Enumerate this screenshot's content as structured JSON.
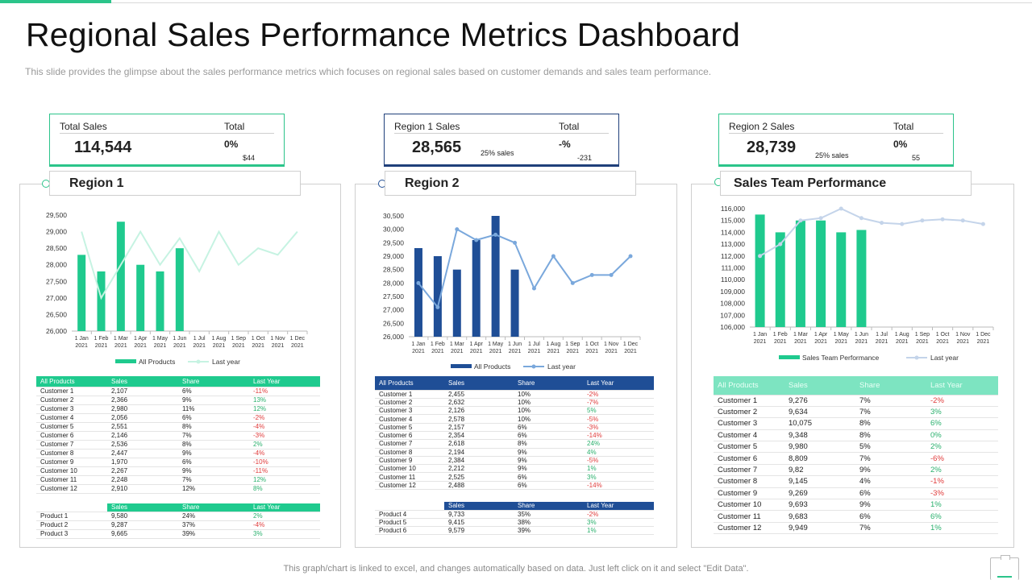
{
  "header": {
    "title": "Regional Sales Performance Metrics Dashboard",
    "subtitle": "This slide provides  the glimpse about the sales performance  metrics which focuses on regional sales based on customer demands  and sales team performance."
  },
  "footer": {
    "note": "This graph/chart is linked to excel,  and changes automatically based on data. Just left click on it and select \"Edit Data\"."
  },
  "colors": {
    "accent": "#2bc48a",
    "green_bar": "#1fca8e",
    "green_line": "#c6f3e2",
    "navy_bar": "#1f4e96",
    "blue_line": "#7aa8dc",
    "positive": "#2ab06d",
    "negative": "#e03b3b"
  },
  "kpis": [
    {
      "label": "Total Sales",
      "total_label": "Total",
      "value": "114,544",
      "pct": "0%",
      "sub": "",
      "delta": "$44"
    },
    {
      "label": "Region 1 Sales",
      "total_label": "Total",
      "value": "28,565",
      "pct": "-%",
      "sub": "25% sales",
      "delta": "-231"
    },
    {
      "label": "Region 2 Sales",
      "total_label": "Total",
      "value": "28,739",
      "pct": "0%",
      "sub": "25% sales",
      "delta": "55"
    }
  ],
  "panels": [
    {
      "title": "Region 1",
      "table_headers": [
        "All Products",
        "Sales",
        "Share",
        "Last Year"
      ],
      "rows": [
        [
          "Customer 1",
          "2,107",
          "6%",
          "-11%"
        ],
        [
          "Customer 2",
          "2,366",
          "9%",
          "13%"
        ],
        [
          "Customer 3",
          "2,980",
          "11%",
          "12%"
        ],
        [
          "Customer 4",
          "2,056",
          "6%",
          "-2%"
        ],
        [
          "Customer 5",
          "2,551",
          "8%",
          "-4%"
        ],
        [
          "Customer 6",
          "2,146",
          "7%",
          "-3%"
        ],
        [
          "Customer 7",
          "2,536",
          "8%",
          "2%"
        ],
        [
          "Customer 8",
          "2,447",
          "9%",
          "-4%"
        ],
        [
          "Customer 9",
          "1,970",
          "6%",
          "-10%"
        ],
        [
          "Customer 10",
          "2,267",
          "9%",
          "-11%"
        ],
        [
          "Customer 11",
          "2,248",
          "7%",
          "12%"
        ],
        [
          "Customer 12",
          "2,910",
          "12%",
          "8%"
        ]
      ],
      "product_headers": [
        "",
        "Sales",
        "Share",
        "Last Year"
      ],
      "products": [
        [
          "Product  1",
          "9,580",
          "24%",
          "2%"
        ],
        [
          "Product  2",
          "9,287",
          "37%",
          "-4%"
        ],
        [
          "Product  3",
          "9,665",
          "39%",
          "3%"
        ]
      ]
    },
    {
      "title": "Region 2",
      "table_headers": [
        "All Products",
        "Sales",
        "Share",
        "Last Year"
      ],
      "rows": [
        [
          "Customer 1",
          "2,455",
          "10%",
          "-2%"
        ],
        [
          "Customer 2",
          "2,632",
          "10%",
          "-7%"
        ],
        [
          "Customer 3",
          "2,126",
          "10%",
          "5%"
        ],
        [
          "Customer 4",
          "2,578",
          "10%",
          "-5%"
        ],
        [
          "Customer 5",
          "2,157",
          "6%",
          "-3%"
        ],
        [
          "Customer 6",
          "2,354",
          "6%",
          "-14%"
        ],
        [
          "Customer 7",
          "2,618",
          "8%",
          "24%"
        ],
        [
          "Customer 8",
          "2,194",
          "9%",
          "4%"
        ],
        [
          "Customer 9",
          "2,384",
          "9%",
          "-5%"
        ],
        [
          "Customer 10",
          "2,212",
          "9%",
          "1%"
        ],
        [
          "Customer 11",
          "2,525",
          "6%",
          "3%"
        ],
        [
          "Customer 12",
          "2,488",
          "6%",
          "-14%"
        ]
      ],
      "product_headers": [
        "",
        "Sales",
        "Share",
        "Last Year"
      ],
      "products": [
        [
          "Product 4",
          "9,733",
          "35%",
          "-2%"
        ],
        [
          "Product 5",
          "9,415",
          "38%",
          "3%"
        ],
        [
          "Product 6",
          "9,579",
          "39%",
          "1%"
        ]
      ]
    },
    {
      "title": "Sales Team Performance",
      "table_headers": [
        "All Products",
        "Sales",
        "Share",
        "Last Year"
      ],
      "rows": [
        [
          "Customer 1",
          "9,276",
          "7%",
          "-2%"
        ],
        [
          "Customer 2",
          "9,634",
          "7%",
          "3%"
        ],
        [
          "Customer 3",
          "10,075",
          "8%",
          "6%"
        ],
        [
          "Customer 4",
          "9,348",
          "8%",
          "0%"
        ],
        [
          "Customer 5",
          "9,980",
          "5%",
          "2%"
        ],
        [
          "Customer 6",
          "8,809",
          "7%",
          "-6%"
        ],
        [
          "Customer 7",
          "9,82",
          "9%",
          "2%"
        ],
        [
          "Customer 8",
          "9,145",
          "4%",
          "-1%"
        ],
        [
          "Customer 9",
          "9,269",
          "6%",
          "-3%"
        ],
        [
          "Customer 10",
          "9,693",
          "9%",
          "1%"
        ],
        [
          "Customer 11",
          "9,683",
          "6%",
          "6%"
        ],
        [
          "Customer 12",
          "9,949",
          "7%",
          "1%"
        ]
      ]
    }
  ],
  "chart_data": [
    {
      "type": "bar",
      "categories": [
        "1 Jan 2021",
        "1 Feb 2021",
        "1 Mar 2021",
        "1 Apr 2021",
        "1 May 2021",
        "1 Jun 2021",
        "1 Jul 2021",
        "1 Aug 2021",
        "1 Sep 2021",
        "1 Oct 2021",
        "1 Nov 2021",
        "1 Dec 2021"
      ],
      "series": [
        {
          "name": "All Products",
          "type": "bar",
          "values": [
            28300,
            27800,
            29300,
            28000,
            27800,
            28500,
            null,
            null,
            null,
            null,
            null,
            null
          ]
        },
        {
          "name": "Last year",
          "type": "line",
          "values": [
            29000,
            27000,
            28000,
            29000,
            28000,
            28800,
            27800,
            29000,
            28000,
            28500,
            28300,
            29000
          ]
        }
      ],
      "yticks": [
        26000,
        26500,
        27000,
        27500,
        28000,
        28500,
        29000,
        29500
      ],
      "ylim": [
        26000,
        29500
      ]
    },
    {
      "type": "bar",
      "categories": [
        "1 Jan 2021",
        "1 Feb 2021",
        "1 Mar 2021",
        "1 Apr 2021",
        "1 May 2021",
        "1 Jun 2021",
        "1 Jul 2021",
        "1 Aug 2021",
        "1 Sep 2021",
        "1 Oct 2021",
        "1 Nov 2021",
        "1 Dec 2021"
      ],
      "series": [
        {
          "name": "All Products",
          "type": "bar",
          "values": [
            29300,
            29000,
            28500,
            29600,
            30500,
            28500,
            null,
            null,
            null,
            null,
            null,
            null
          ]
        },
        {
          "name": "Last year",
          "type": "line",
          "values": [
            28000,
            27100,
            30000,
            29600,
            29800,
            29500,
            27800,
            29000,
            28000,
            28300,
            28300,
            29000
          ]
        }
      ],
      "yticks": [
        26000,
        26500,
        27000,
        27500,
        28000,
        28500,
        29000,
        29500,
        30000,
        30500
      ],
      "ylim": [
        26000,
        30500
      ]
    },
    {
      "type": "bar",
      "categories": [
        "1 Jan 2021",
        "1 Feb 2021",
        "1 Mar 2021",
        "1 Apr 2021",
        "1 May 2021",
        "1 Jun 2021",
        "1 Jul 2021",
        "1 Aug 2021",
        "1 Sep 2021",
        "1 Oct 2021",
        "1 Nov 2021",
        "1 Dec 2021"
      ],
      "series": [
        {
          "name": "Sales Team Performance",
          "type": "bar",
          "values": [
            115500,
            114000,
            115000,
            115000,
            114000,
            114200,
            null,
            null,
            null,
            null,
            null,
            null
          ]
        },
        {
          "name": "Last year",
          "type": "line",
          "values": [
            112000,
            113000,
            115000,
            115200,
            116000,
            115200,
            114800,
            114700,
            115000,
            115100,
            115000,
            114700
          ]
        }
      ],
      "yticks": [
        106000,
        107000,
        108000,
        109000,
        110000,
        111000,
        112000,
        113000,
        114000,
        115000,
        116000
      ],
      "ylim": [
        106000,
        116000
      ]
    }
  ]
}
